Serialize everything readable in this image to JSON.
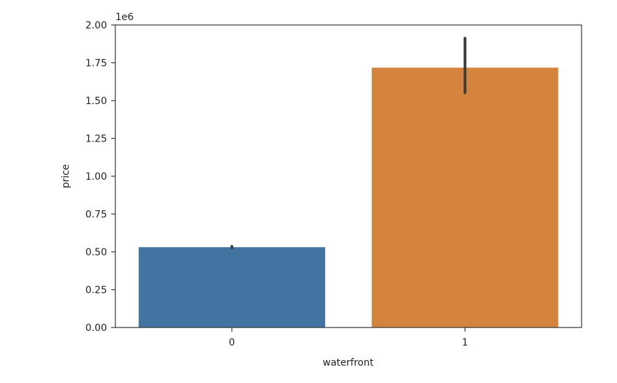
{
  "chart_data": {
    "type": "bar",
    "title": "",
    "xlabel": "waterfront",
    "ylabel": "price",
    "offset_text": "1e6",
    "categories": [
      "0",
      "1"
    ],
    "values": [
      0.531,
      1.718
    ],
    "error_bars": [
      {
        "low": 0.526,
        "high": 0.536
      },
      {
        "low": 1.553,
        "high": 1.912
      }
    ],
    "bar_colors": [
      "#4374a1",
      "#d5843f"
    ],
    "ylim": [
      0,
      2.0
    ],
    "yticks": [
      0.0,
      0.25,
      0.5,
      0.75,
      1.0,
      1.25,
      1.5,
      1.75,
      2.0
    ],
    "ytick_labels": [
      "0.00",
      "0.25",
      "0.50",
      "0.75",
      "1.00",
      "1.25",
      "1.50",
      "1.75",
      "2.00"
    ],
    "grid": false,
    "legend": "none"
  }
}
